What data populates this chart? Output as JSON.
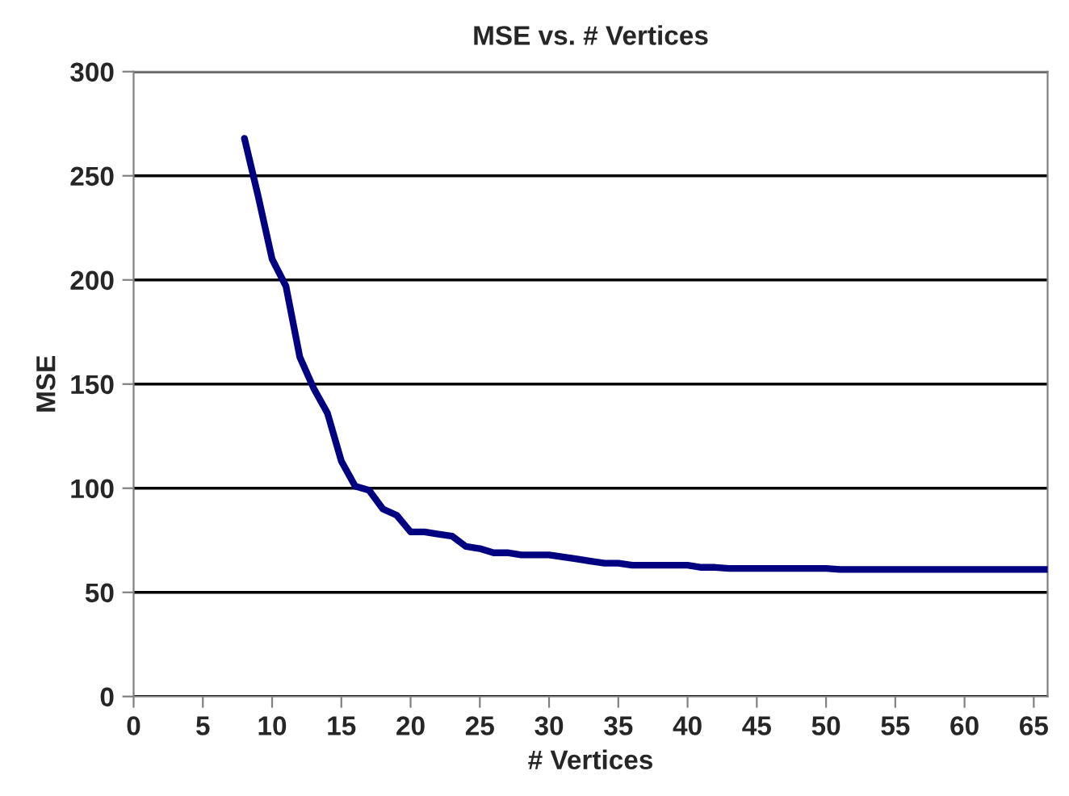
{
  "chart_data": {
    "type": "line",
    "title": "MSE vs. # Vertices",
    "xlabel": "# Vertices",
    "ylabel": "MSE",
    "x": [
      8,
      9,
      10,
      11,
      12,
      13,
      14,
      15,
      16,
      17,
      18,
      19,
      20,
      21,
      22,
      23,
      24,
      25,
      26,
      27,
      28,
      29,
      30,
      31,
      32,
      33,
      34,
      35,
      36,
      38,
      40,
      41,
      42,
      43,
      45,
      50,
      51,
      55,
      60,
      66
    ],
    "series": [
      {
        "color": "#000080",
        "values": [
          268,
          240,
          210,
          197,
          163,
          148,
          136,
          113,
          101,
          99,
          90,
          87,
          79,
          79,
          78,
          77,
          72,
          71,
          69,
          69,
          68,
          68,
          68,
          67,
          66,
          65,
          64,
          64,
          63,
          63,
          63,
          62,
          62,
          61.5,
          61.5,
          61.5,
          61,
          61,
          61,
          61
        ]
      }
    ],
    "xlim": [
      0,
      66
    ],
    "xticks": [
      0,
      5,
      10,
      15,
      20,
      25,
      30,
      35,
      40,
      45,
      50,
      55,
      60,
      65
    ],
    "ylim": [
      0,
      300
    ],
    "yticks": [
      0,
      50,
      100,
      150,
      200,
      250,
      300
    ],
    "grid": "y",
    "legend": false,
    "marker": "none",
    "line_style": "solid"
  }
}
